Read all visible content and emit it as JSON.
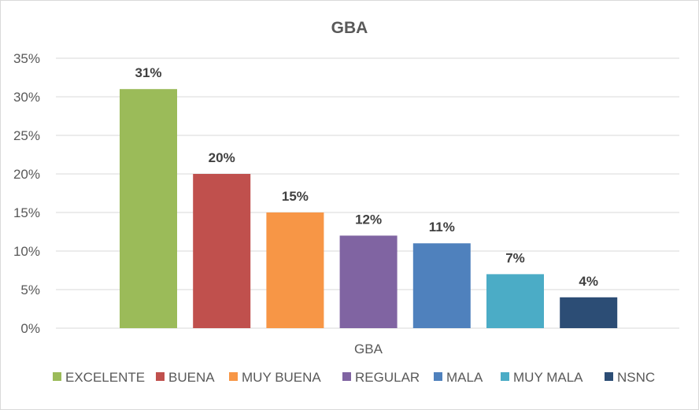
{
  "chart_data": {
    "type": "bar",
    "title": "GBA",
    "categories": [
      "GBA"
    ],
    "xlabel": "",
    "ylabel": "",
    "ylim": [
      0,
      35
    ],
    "yticks": [
      "0%",
      "5%",
      "10%",
      "15%",
      "20%",
      "25%",
      "30%",
      "35%"
    ],
    "ytick_values": [
      0,
      5,
      10,
      15,
      20,
      25,
      30,
      35
    ],
    "grid": true,
    "legend_position": "bottom",
    "series": [
      {
        "name": "EXCELENTE",
        "values": [
          31
        ],
        "label": "31%",
        "color": "#9bbb59"
      },
      {
        "name": "BUENA",
        "values": [
          20
        ],
        "label": "20%",
        "color": "#c0504d"
      },
      {
        "name": "MUY BUENA",
        "values": [
          15
        ],
        "label": "15%",
        "color": "#f79646"
      },
      {
        "name": "REGULAR",
        "values": [
          12
        ],
        "label": "12%",
        "color": "#8064a2"
      },
      {
        "name": "MALA",
        "values": [
          11
        ],
        "label": "11%",
        "color": "#4f81bd"
      },
      {
        "name": "MUY MALA",
        "values": [
          7
        ],
        "label": "7%",
        "color": "#4bacc6"
      },
      {
        "name": "NSNC",
        "values": [
          4
        ],
        "label": "4%",
        "color": "#2c4d75"
      }
    ]
  }
}
